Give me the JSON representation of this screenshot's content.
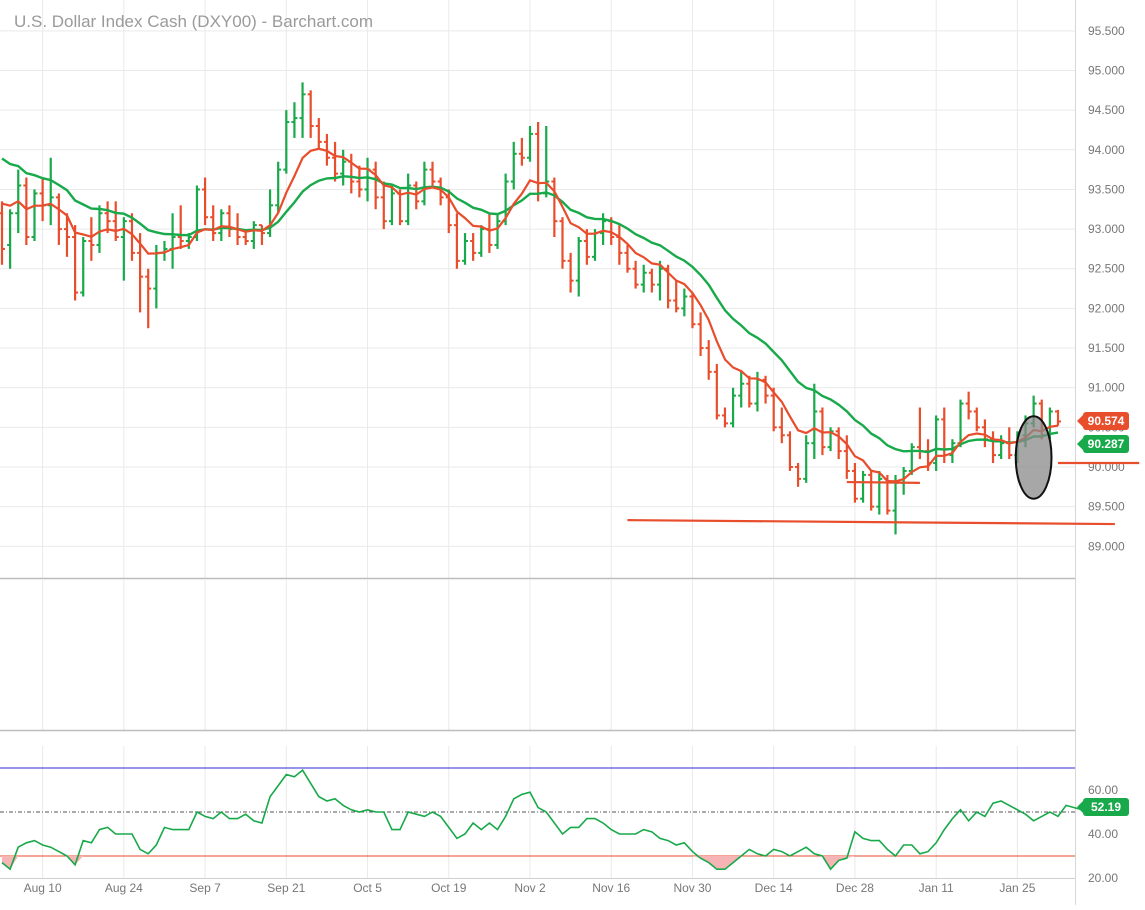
{
  "title": "U.S. Dollar Index Cash (DXY00) - Barchart.com",
  "colors": {
    "up": "#18a94a",
    "down": "#e84d2c",
    "grid": "#e9e9e9",
    "axis_text": "#777777",
    "ma_fast": "#e84d2c",
    "ma_slow": "#18a94a",
    "rsi_line": "#18a94a",
    "rsi_upper": "#2b2bd6",
    "rsi_lower": "#e84d2c",
    "rsi_oversold_fill": "#f6b4b4"
  },
  "price_axis": {
    "ticks": [
      "95.500",
      "95.000",
      "94.500",
      "94.000",
      "93.500",
      "93.000",
      "92.500",
      "92.000",
      "91.500",
      "91.000",
      "90.500",
      "90.000",
      "89.500",
      "89.000"
    ],
    "min": 88.6,
    "max": 95.7
  },
  "rsi_axis": {
    "ticks": [
      "60.00",
      "40.00",
      "20.00"
    ],
    "min": 20,
    "max": 80
  },
  "date_axis": {
    "labels": [
      "Aug 10",
      "Aug 24",
      "Sep 7",
      "Sep 21",
      "Oct 5",
      "Oct 19",
      "Nov 2",
      "Nov 16",
      "Nov 30",
      "Dec 14",
      "Dec 28",
      "Jan 11",
      "Jan 25"
    ]
  },
  "last_price": {
    "label": "90.574",
    "value": 90.574
  },
  "ma_value": {
    "label": "90.287",
    "value": 90.287
  },
  "rsi_value": {
    "label": "52.19",
    "value": 52.19
  },
  "chart_data": [
    {
      "type": "ohlc",
      "title": "U.S. Dollar Index Cash (DXY00) - Barchart.com",
      "x_start": "Aug 3",
      "x_unit": "trading days",
      "ylim": [
        88.6,
        95.7
      ],
      "bars": [
        [
          93.2,
          93.35,
          92.55,
          92.75
        ],
        [
          92.8,
          93.25,
          92.5,
          93.2
        ],
        [
          93.2,
          93.75,
          92.95,
          93.55
        ],
        [
          93.55,
          93.65,
          92.8,
          92.9
        ],
        [
          92.9,
          93.5,
          92.85,
          93.45
        ],
        [
          93.45,
          93.65,
          93.1,
          93.3
        ],
        [
          93.3,
          93.9,
          93.05,
          93.4
        ],
        [
          93.4,
          93.45,
          92.8,
          93.0
        ],
        [
          93.0,
          93.2,
          92.65,
          92.9
        ],
        [
          92.9,
          93.05,
          92.1,
          92.2
        ],
        [
          92.2,
          92.9,
          92.15,
          92.85
        ],
        [
          92.85,
          93.15,
          92.6,
          92.8
        ],
        [
          92.8,
          93.3,
          92.7,
          93.2
        ],
        [
          93.2,
          93.35,
          92.95,
          93.1
        ],
        [
          93.1,
          93.35,
          92.85,
          92.9
        ],
        [
          92.9,
          93.15,
          92.35,
          93.1
        ],
        [
          93.1,
          93.2,
          92.6,
          92.7
        ],
        [
          92.7,
          92.95,
          91.95,
          92.4
        ],
        [
          92.4,
          92.5,
          91.75,
          92.25
        ],
        [
          92.25,
          92.8,
          92.0,
          92.7
        ],
        [
          92.7,
          92.85,
          92.6,
          92.75
        ],
        [
          92.75,
          93.2,
          92.5,
          92.9
        ],
        [
          92.9,
          93.3,
          92.75,
          92.85
        ],
        [
          92.85,
          92.95,
          92.75,
          92.9
        ],
        [
          92.9,
          93.55,
          92.85,
          93.5
        ],
        [
          93.5,
          93.65,
          93.05,
          93.15
        ],
        [
          93.15,
          93.3,
          92.85,
          92.95
        ],
        [
          92.95,
          93.25,
          92.85,
          93.2
        ],
        [
          93.2,
          93.3,
          92.9,
          93.0
        ],
        [
          93.0,
          93.2,
          92.8,
          92.9
        ],
        [
          92.9,
          93.0,
          92.8,
          92.85
        ],
        [
          92.85,
          93.1,
          92.75,
          93.05
        ],
        [
          93.05,
          93.05,
          92.8,
          92.95
        ],
        [
          92.95,
          93.5,
          92.9,
          93.3
        ],
        [
          93.3,
          93.85,
          93.2,
          93.75
        ],
        [
          93.75,
          94.5,
          93.7,
          94.35
        ],
        [
          94.35,
          94.6,
          94.15,
          94.4
        ],
        [
          94.4,
          94.85,
          94.15,
          94.7
        ],
        [
          94.7,
          94.75,
          94.15,
          94.3
        ],
        [
          94.3,
          94.4,
          94.0,
          94.1
        ],
        [
          94.1,
          94.2,
          93.8,
          93.9
        ],
        [
          93.9,
          94.1,
          93.6,
          93.7
        ],
        [
          93.7,
          94.0,
          93.55,
          93.85
        ],
        [
          93.85,
          93.95,
          93.45,
          93.6
        ],
        [
          93.6,
          93.8,
          93.4,
          93.5
        ],
        [
          93.5,
          93.9,
          93.35,
          93.75
        ],
        [
          93.75,
          93.85,
          93.25,
          93.4
        ],
        [
          93.4,
          93.6,
          93.0,
          93.1
        ],
        [
          93.1,
          93.55,
          93.05,
          93.45
        ],
        [
          93.45,
          93.5,
          93.05,
          93.1
        ],
        [
          93.1,
          93.7,
          93.05,
          93.55
        ],
        [
          93.55,
          93.6,
          93.25,
          93.35
        ],
        [
          93.35,
          93.85,
          93.3,
          93.75
        ],
        [
          93.75,
          93.85,
          93.55,
          93.6
        ],
        [
          93.6,
          93.65,
          93.3,
          93.4
        ],
        [
          93.4,
          93.5,
          92.95,
          93.05
        ],
        [
          93.05,
          93.2,
          92.5,
          92.6
        ],
        [
          92.6,
          92.95,
          92.55,
          92.85
        ],
        [
          92.85,
          92.95,
          92.6,
          92.7
        ],
        [
          92.7,
          93.05,
          92.65,
          93.0
        ],
        [
          93.0,
          93.2,
          92.7,
          92.8
        ],
        [
          92.8,
          93.2,
          92.75,
          93.1
        ],
        [
          93.1,
          93.7,
          93.05,
          93.6
        ],
        [
          93.6,
          94.1,
          93.5,
          93.95
        ],
        [
          93.95,
          94.15,
          93.8,
          93.9
        ],
        [
          93.9,
          94.3,
          93.85,
          94.2
        ],
        [
          94.2,
          94.35,
          93.35,
          93.45
        ],
        [
          93.45,
          94.3,
          93.4,
          93.6
        ],
        [
          93.6,
          93.65,
          92.9,
          93.1
        ],
        [
          93.1,
          93.15,
          92.5,
          92.6
        ],
        [
          92.6,
          92.7,
          92.2,
          92.35
        ],
        [
          92.35,
          92.9,
          92.15,
          92.85
        ],
        [
          92.85,
          93.0,
          92.55,
          92.65
        ],
        [
          92.65,
          93.0,
          92.6,
          92.95
        ],
        [
          92.95,
          93.2,
          92.8,
          93.1
        ],
        [
          93.1,
          93.15,
          92.8,
          92.9
        ],
        [
          92.9,
          93.05,
          92.55,
          92.7
        ],
        [
          92.7,
          92.8,
          92.45,
          92.5
        ],
        [
          92.5,
          92.6,
          92.25,
          92.3
        ],
        [
          92.3,
          92.55,
          92.2,
          92.45
        ],
        [
          92.45,
          92.5,
          92.2,
          92.3
        ],
        [
          92.3,
          92.6,
          92.1,
          92.5
        ],
        [
          92.5,
          92.55,
          92.0,
          92.1
        ],
        [
          92.1,
          92.35,
          91.95,
          92.0
        ],
        [
          92.0,
          92.25,
          91.9,
          92.15
        ],
        [
          92.15,
          92.2,
          91.75,
          91.8
        ],
        [
          91.8,
          91.95,
          91.4,
          91.5
        ],
        [
          91.5,
          91.6,
          91.1,
          91.2
        ],
        [
          91.2,
          91.3,
          90.6,
          90.65
        ],
        [
          90.65,
          90.75,
          90.5,
          90.55
        ],
        [
          90.55,
          91.0,
          90.5,
          90.9
        ],
        [
          90.9,
          91.2,
          90.75,
          91.05
        ],
        [
          91.05,
          91.15,
          90.75,
          90.8
        ],
        [
          90.8,
          91.2,
          90.7,
          91.1
        ],
        [
          91.1,
          91.15,
          90.8,
          90.9
        ],
        [
          90.9,
          91.0,
          90.45,
          90.5
        ],
        [
          90.5,
          90.75,
          90.3,
          90.4
        ],
        [
          90.4,
          90.45,
          89.95,
          90.0
        ],
        [
          90.0,
          90.05,
          89.75,
          89.85
        ],
        [
          89.85,
          90.4,
          89.8,
          90.3
        ],
        [
          90.3,
          91.05,
          90.1,
          90.7
        ],
        [
          90.7,
          90.75,
          90.15,
          90.25
        ],
        [
          90.25,
          90.5,
          90.2,
          90.45
        ],
        [
          90.45,
          90.5,
          90.1,
          90.2
        ],
        [
          90.2,
          90.4,
          89.85,
          89.95
        ],
        [
          89.95,
          90.05,
          89.55,
          89.6
        ],
        [
          89.6,
          89.95,
          89.55,
          89.9
        ],
        [
          89.9,
          89.95,
          89.45,
          89.5
        ],
        [
          89.5,
          89.95,
          89.4,
          89.85
        ],
        [
          89.85,
          89.9,
          89.4,
          89.45
        ],
        [
          89.45,
          89.9,
          89.15,
          89.8
        ],
        [
          89.8,
          90.0,
          89.65,
          89.95
        ],
        [
          89.95,
          90.3,
          89.9,
          90.25
        ],
        [
          90.25,
          90.75,
          90.1,
          90.2
        ],
        [
          90.2,
          90.35,
          89.95,
          90.05
        ],
        [
          90.05,
          90.65,
          89.95,
          90.6
        ],
        [
          90.6,
          90.75,
          90.05,
          90.15
        ],
        [
          90.15,
          90.35,
          90.05,
          90.3
        ],
        [
          90.3,
          90.85,
          90.25,
          90.8
        ],
        [
          90.8,
          90.95,
          90.6,
          90.7
        ],
        [
          90.7,
          90.75,
          90.45,
          90.5
        ],
        [
          90.5,
          90.6,
          90.25,
          90.35
        ],
        [
          90.35,
          90.45,
          90.05,
          90.15
        ],
        [
          90.15,
          90.4,
          90.1,
          90.3
        ],
        [
          90.3,
          90.5,
          90.1,
          90.15
        ],
        [
          90.15,
          90.45,
          90.05,
          90.4
        ],
        [
          90.4,
          90.65,
          90.25,
          90.55
        ],
        [
          90.55,
          90.9,
          90.5,
          90.8
        ],
        [
          90.8,
          90.85,
          90.35,
          90.4
        ],
        [
          90.4,
          90.75,
          90.35,
          90.7
        ],
        [
          90.7,
          90.72,
          90.52,
          90.574
        ]
      ]
    },
    {
      "type": "rsi",
      "ylim": [
        20,
        80
      ],
      "upper_band": 70,
      "midline": 50,
      "lower_band": 30,
      "values": [
        27,
        24,
        34,
        36,
        37,
        35,
        34,
        32,
        30,
        26,
        37,
        36,
        42,
        43,
        40,
        40,
        40,
        33,
        31,
        35,
        43,
        42,
        42,
        42,
        50,
        48,
        47,
        50,
        47,
        47,
        49,
        46,
        45,
        57,
        62,
        67,
        66,
        69,
        63,
        57,
        55,
        56,
        53,
        51,
        50,
        51,
        50,
        50,
        42,
        42,
        50,
        49,
        48,
        50,
        48,
        43,
        38,
        40,
        45,
        42,
        45,
        42,
        48,
        56,
        58,
        59,
        52,
        50,
        45,
        40,
        43,
        43,
        47,
        47,
        45,
        42,
        40,
        40,
        40,
        42,
        41,
        38,
        37,
        35,
        36,
        32,
        29,
        27,
        24,
        24,
        27,
        30,
        33,
        31,
        30,
        33,
        32,
        30,
        32,
        34,
        31,
        30,
        24,
        28,
        29,
        41,
        38,
        37,
        37,
        33,
        30,
        35,
        35,
        31,
        32,
        36,
        42,
        47,
        51,
        46,
        50,
        48,
        54,
        55,
        53,
        51,
        49,
        46,
        48,
        50,
        48,
        53,
        52,
        51,
        52
      ]
    }
  ],
  "annotations": {
    "support_line_major": {
      "from": [
        77,
        89.33
      ],
      "to": [
        137,
        89.28
      ]
    },
    "support_line_minor": {
      "from": [
        104,
        89.81
      ],
      "to": [
        113,
        89.8
      ]
    },
    "support_line_recent": {
      "from": [
        130,
        90.05
      ],
      "to": [
        140,
        90.05
      ]
    },
    "highlight_ellipse": {
      "center": [
        127,
        90.12
      ],
      "half_width_bars": 2.2,
      "half_height": 0.52
    }
  }
}
